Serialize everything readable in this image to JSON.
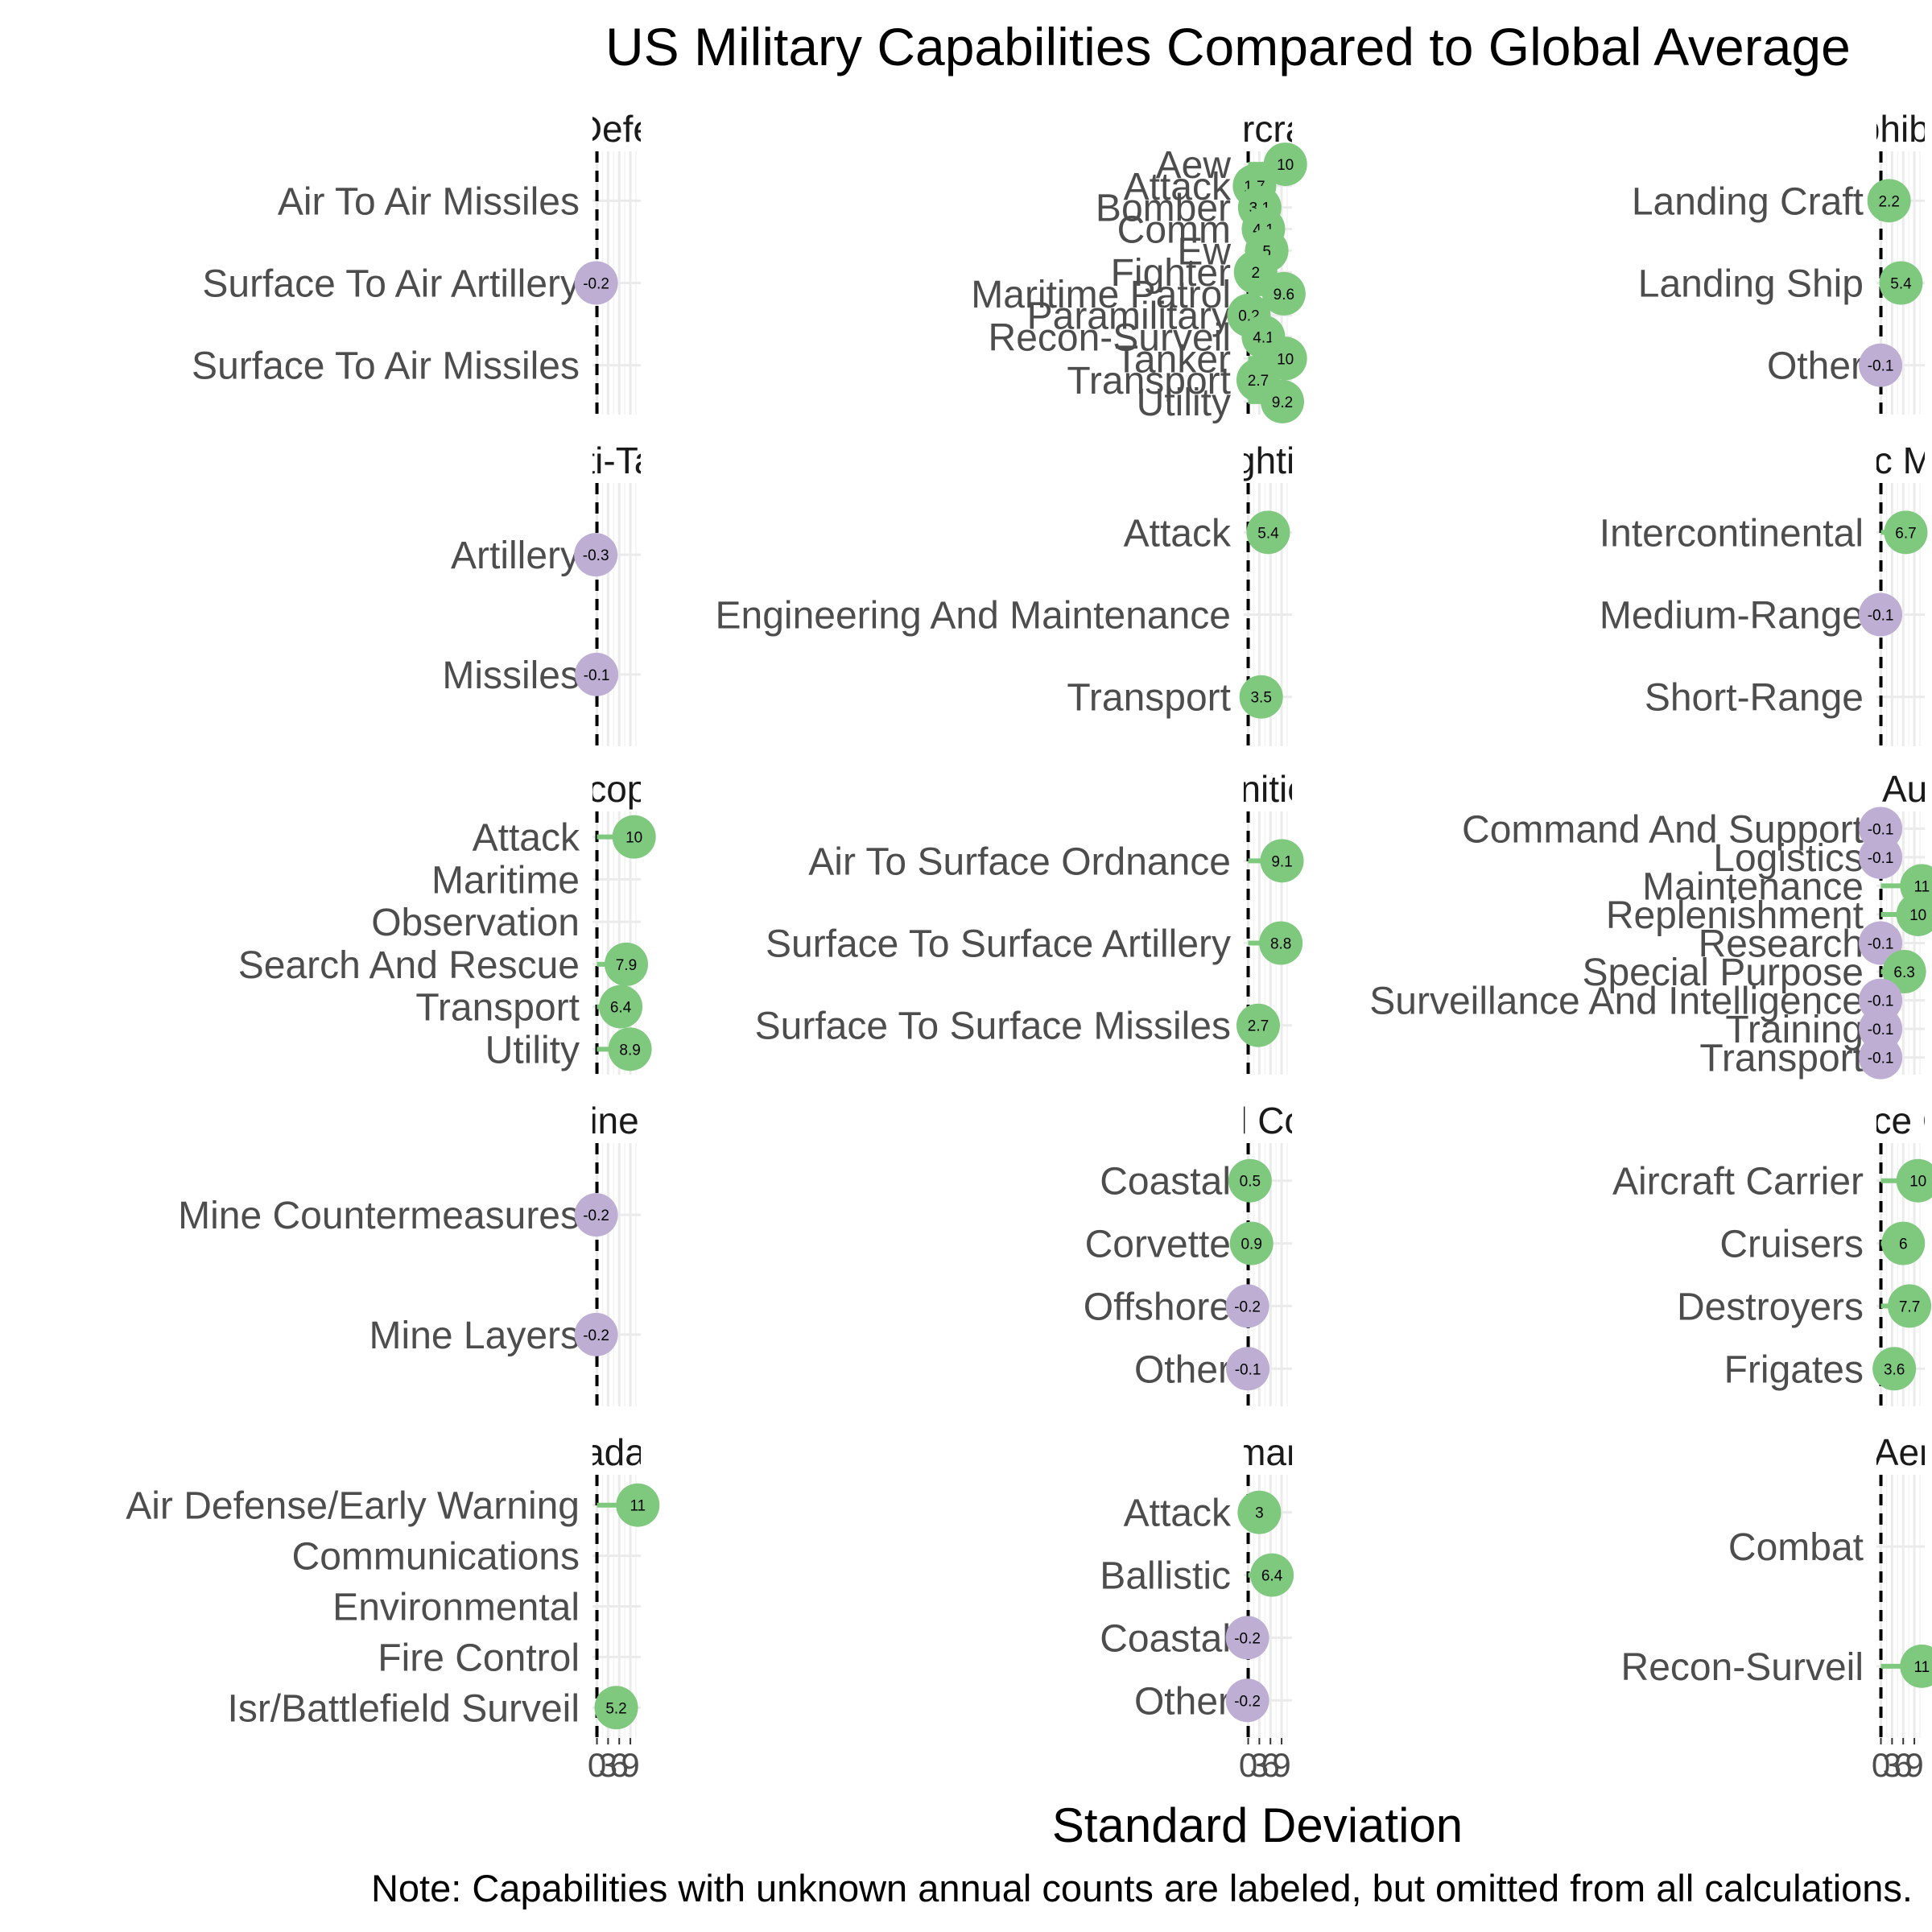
{
  "chart_data": {
    "type": "lollipop-facet",
    "title": "US Military Capabilities Compared to Global Average",
    "xlabel": "Standard Deviation",
    "caption": "Note: Capabilities with unknown annual counts are labeled, but omitted from all calculations.",
    "x_ticks": [
      "0",
      "3",
      "6",
      "9"
    ],
    "reference_line": 0,
    "colors": {
      "above": "#7fc97f",
      "below": "#beaed4",
      "reference": "#000000",
      "grid": "#ebebeb"
    },
    "facets": [
      {
        "strip": "Air Defense",
        "categories": [
          "Air To Air Missiles",
          "Surface To Air Artillery",
          "Surface To Air Missiles"
        ],
        "values": [
          null,
          -0.2,
          null
        ],
        "labels": [
          "",
          "-0.2",
          ""
        ]
      },
      {
        "strip": "Aircraft",
        "categories": [
          "Aew",
          "Attack",
          "Bomber",
          "Comm",
          "Ew",
          "Fighter",
          "Maritime Patrol",
          "Paramilitary",
          "Recon-Surveil",
          "Tanker",
          "Transport",
          "Utility"
        ],
        "values": [
          10,
          1.7,
          3.1,
          4.1,
          5,
          2,
          9.6,
          0.2,
          4.1,
          10,
          2.7,
          9.2
        ],
        "labels": [
          "10",
          "1.7",
          "3.1",
          "4.1",
          "5",
          "2",
          "9.6",
          "0.2",
          "4.1",
          "10",
          "2.7",
          "9.2"
        ]
      },
      {
        "strip": "Amphibious",
        "categories": [
          "Landing Craft",
          "Landing Ship",
          "Other"
        ],
        "values": [
          2.2,
          5.4,
          -0.1
        ],
        "labels": [
          "2.2",
          "5.4",
          "-0.1"
        ]
      },
      {
        "strip": "Anti-Tank",
        "categories": [
          "Artillery",
          "Missiles"
        ],
        "values": [
          -0.3,
          -0.1
        ],
        "labels": [
          "-0.3",
          "-0.1"
        ]
      },
      {
        "strip": "Armored Fighting Vehicles",
        "categories": [
          "Attack",
          "Engineering And Maintenance",
          "Transport"
        ],
        "values": [
          5.4,
          null,
          3.5
        ],
        "labels": [
          "5.4",
          "",
          "3.5"
        ]
      },
      {
        "strip": "Ballistic Missiles",
        "categories": [
          "Intercontinental",
          "Medium-Range",
          "Short-Range"
        ],
        "values": [
          6.7,
          -0.1,
          null
        ],
        "labels": [
          "6.7",
          "-0.1",
          ""
        ]
      },
      {
        "strip": "Helicopters",
        "categories": [
          "Attack",
          "Maritime",
          "Observation",
          "Search And Rescue",
          "Transport",
          "Utility"
        ],
        "values": [
          10,
          null,
          null,
          7.9,
          6.4,
          8.9
        ],
        "labels": [
          "10",
          "",
          "",
          "7.9",
          "6.4",
          "8.9"
        ]
      },
      {
        "strip": "Munitions",
        "categories": [
          "Air To Surface Ordnance",
          "Surface To Surface Artillery",
          "Surface To Surface Missiles"
        ],
        "values": [
          9.1,
          8.8,
          2.7
        ],
        "labels": [
          "9.1",
          "8.8",
          "2.7"
        ]
      },
      {
        "strip": "Naval Auxiliary",
        "categories": [
          "Command And Support",
          "Logistics",
          "Maintenance",
          "Replenishment",
          "Research",
          "Special Purpose",
          "Surveillance And Intelligence",
          "Training",
          "Transport"
        ],
        "values": [
          -0.1,
          -0.1,
          11,
          10,
          -0.1,
          6.3,
          -0.1,
          -0.1,
          -0.1
        ],
        "labels": [
          "-0.1",
          "-0.1",
          "11",
          "10",
          "-0.1",
          "6.3",
          "-0.1",
          "-0.1",
          "-0.1"
        ]
      },
      {
        "strip": "Naval Mine Warfare",
        "categories": [
          "Mine Countermeasures",
          "Mine Layers"
        ],
        "values": [
          -0.2,
          -0.2
        ],
        "labels": [
          "-0.2",
          "-0.2"
        ]
      },
      {
        "strip": "Naval Coastal",
        "categories": [
          "Coastal",
          "Corvette",
          "Offshore",
          "Other"
        ],
        "values": [
          0.5,
          0.9,
          -0.2,
          -0.1
        ],
        "labels": [
          "0.5",
          "0.9",
          "-0.2",
          "-0.1"
        ]
      },
      {
        "strip": "Naval Surface Combatants",
        "categories": [
          "Aircraft Carrier",
          "Cruisers",
          "Destroyers",
          "Frigates"
        ],
        "values": [
          10,
          6,
          7.7,
          3.6
        ],
        "labels": [
          "10",
          "6",
          "7.7",
          "3.6"
        ]
      },
      {
        "strip": "Radars",
        "categories": [
          "Air Defense/Early Warning",
          "Communications",
          "Environmental",
          "Fire Control",
          "Isr/Battlefield Surveil"
        ],
        "values": [
          11,
          null,
          null,
          null,
          5.2
        ],
        "labels": [
          "11",
          "",
          "",
          "",
          "5.2"
        ]
      },
      {
        "strip": "Submarines",
        "categories": [
          "Attack",
          "Ballistic",
          "Coastal",
          "Other"
        ],
        "values": [
          3,
          6.4,
          -0.2,
          -0.2
        ],
        "labels": [
          "3",
          "6.4",
          "-0.2",
          "-0.2"
        ]
      },
      {
        "strip": "Unmanned Aerial Vehicles",
        "categories": [
          "Combat",
          "Recon-Surveil"
        ],
        "values": [
          null,
          11
        ],
        "labels": [
          "",
          "11"
        ]
      }
    ]
  }
}
